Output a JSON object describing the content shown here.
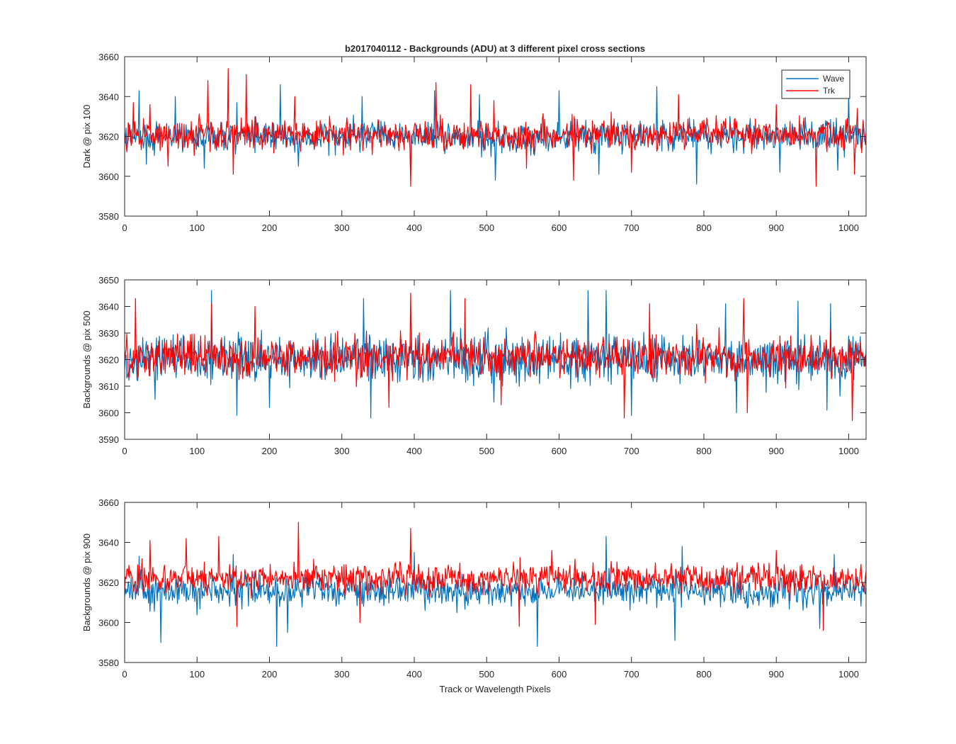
{
  "figure": {
    "title": "b2017040112 - Backgrounds (ADU) at 3 different pixel cross sections",
    "xlabel": "Track or Wavelength Pixels",
    "colors": {
      "wave": "#0072BD",
      "trk": "#FF0000",
      "axes": "#262626"
    }
  },
  "chart_data": [
    {
      "type": "line",
      "ylabel": "Dark @ pix 100",
      "xlim": [
        0,
        1024
      ],
      "ylim": [
        3580,
        3660
      ],
      "xticks": [
        "0",
        "100",
        "200",
        "300",
        "400",
        "500",
        "600",
        "700",
        "800",
        "900",
        "1000"
      ],
      "yticks": [
        "3580",
        "3600",
        "3620",
        "3640",
        "3660"
      ],
      "legend": {
        "entries": [
          "Wave",
          "Trk"
        ],
        "location": "top-right"
      },
      "series": [
        {
          "name": "Wave",
          "color": "#0072BD",
          "mean": 3620,
          "spread": 6,
          "peaks": [
            [
              20,
              3643
            ],
            [
              70,
              3640
            ],
            [
              155,
              3637
            ],
            [
              215,
              3646
            ],
            [
              328,
              3640
            ],
            [
              428,
              3643
            ],
            [
              490,
              3641
            ],
            [
              600,
              3643
            ],
            [
              735,
              3645
            ],
            [
              905,
              3638
            ],
            [
              1000,
              3642
            ]
          ],
          "dips": [
            [
              30,
              3606
            ],
            [
              110,
              3604
            ],
            [
              240,
              3605
            ],
            [
              395,
              3600
            ],
            [
              512,
              3598
            ],
            [
              655,
              3601
            ],
            [
              790,
              3596
            ],
            [
              905,
              3602
            ],
            [
              985,
              3603
            ]
          ]
        },
        {
          "name": "Trk",
          "color": "#FF0000",
          "mean": 3621,
          "spread": 6,
          "peaks": [
            [
              12,
              3637
            ],
            [
              35,
              3636
            ],
            [
              115,
              3648
            ],
            [
              143,
              3654
            ],
            [
              168,
              3651
            ],
            [
              235,
              3640
            ],
            [
              430,
              3647
            ],
            [
              478,
              3646
            ],
            [
              510,
              3638
            ],
            [
              765,
              3641
            ],
            [
              900,
              3636
            ],
            [
              1012,
              3634
            ]
          ],
          "dips": [
            [
              60,
              3605
            ],
            [
              150,
              3601
            ],
            [
              395,
              3595
            ],
            [
              555,
              3604
            ],
            [
              620,
              3598
            ],
            [
              700,
              3602
            ],
            [
              955,
              3595
            ],
            [
              1008,
              3601
            ]
          ]
        }
      ]
    },
    {
      "type": "line",
      "ylabel": "Backgrounds @ pix 500",
      "xlim": [
        0,
        1024
      ],
      "ylim": [
        3590,
        3650
      ],
      "xticks": [
        "0",
        "100",
        "200",
        "300",
        "400",
        "500",
        "600",
        "700",
        "800",
        "900",
        "1000"
      ],
      "yticks": [
        "3590",
        "3600",
        "3610",
        "3620",
        "3630",
        "3640",
        "3650"
      ],
      "series": [
        {
          "name": "Wave",
          "color": "#0072BD",
          "mean": 3620,
          "spread": 7,
          "peaks": [
            [
              120,
              3646
            ],
            [
              330,
              3643
            ],
            [
              450,
              3646
            ],
            [
              640,
              3646
            ],
            [
              665,
              3646
            ],
            [
              830,
              3641
            ],
            [
              930,
              3642
            ],
            [
              975,
              3641
            ]
          ],
          "dips": [
            [
              155,
              3599
            ],
            [
              200,
              3602
            ],
            [
              340,
              3598
            ],
            [
              510,
              3604
            ],
            [
              700,
              3599
            ],
            [
              845,
              3600
            ],
            [
              970,
              3601
            ]
          ]
        },
        {
          "name": "Trk",
          "color": "#FF0000",
          "mean": 3621,
          "spread": 6,
          "peaks": [
            [
              15,
              3643
            ],
            [
              120,
              3641
            ],
            [
              180,
              3640
            ],
            [
              395,
              3645
            ],
            [
              470,
              3643
            ],
            [
              725,
              3641
            ],
            [
              855,
              3643
            ]
          ],
          "dips": [
            [
              365,
              3602
            ],
            [
              520,
              3603
            ],
            [
              690,
              3598
            ],
            [
              860,
              3600
            ],
            [
              1005,
              3597
            ]
          ]
        }
      ]
    },
    {
      "type": "line",
      "ylabel": "Backgrounds @ pix 900",
      "xlim": [
        0,
        1024
      ],
      "ylim": [
        3580,
        3660
      ],
      "xticks": [
        "0",
        "100",
        "200",
        "300",
        "400",
        "500",
        "600",
        "700",
        "800",
        "900",
        "1000"
      ],
      "yticks": [
        "3580",
        "3600",
        "3620",
        "3640",
        "3660"
      ],
      "series": [
        {
          "name": "Wave",
          "color": "#0072BD",
          "mean": 3616,
          "spread": 6,
          "peaks": [
            [
              20,
              3633
            ],
            [
              150,
              3634
            ],
            [
              400,
              3635
            ],
            [
              665,
              3643
            ],
            [
              770,
              3638
            ],
            [
              980,
              3634
            ]
          ],
          "dips": [
            [
              50,
              3590
            ],
            [
              210,
              3588
            ],
            [
              225,
              3595
            ],
            [
              570,
              3588
            ],
            [
              760,
              3591
            ],
            [
              960,
              3597
            ]
          ]
        },
        {
          "name": "Trk",
          "color": "#FF0000",
          "mean": 3622,
          "spread": 6,
          "peaks": [
            [
              35,
              3641
            ],
            [
              85,
              3642
            ],
            [
              130,
              3643
            ],
            [
              240,
              3650
            ],
            [
              395,
              3647
            ],
            [
              590,
              3636
            ],
            [
              900,
              3636
            ]
          ],
          "dips": [
            [
              155,
              3598
            ],
            [
              325,
              3600
            ],
            [
              545,
              3598
            ],
            [
              650,
              3599
            ],
            [
              965,
              3596
            ]
          ]
        }
      ]
    }
  ]
}
